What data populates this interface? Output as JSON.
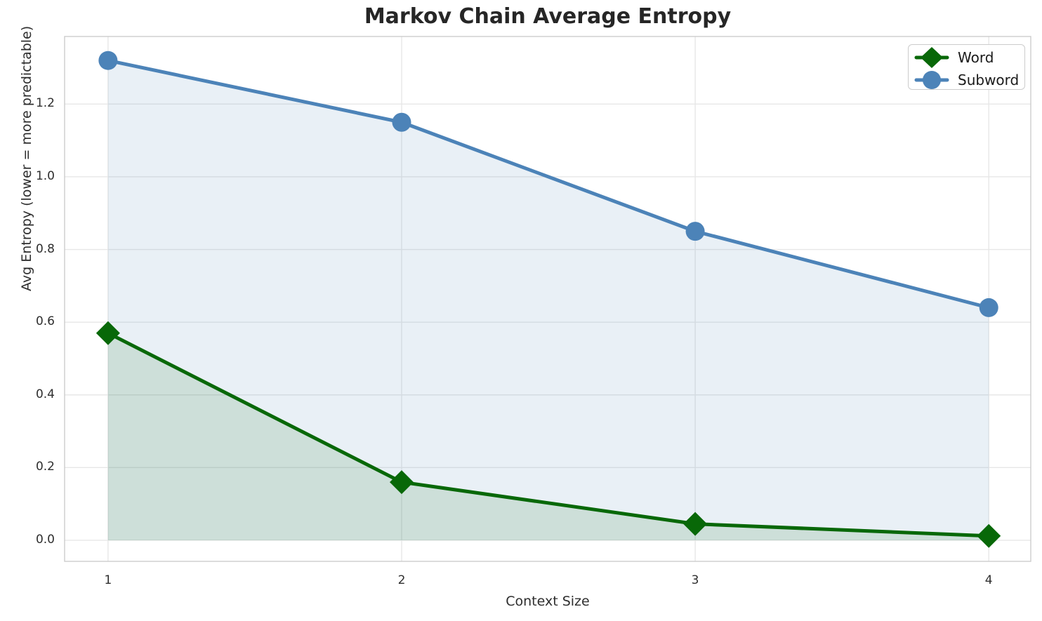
{
  "title": "Markov Chain Average Entropy",
  "chart_data": {
    "type": "line",
    "title": "Markov Chain Average Entropy",
    "xlabel": "Context Size",
    "ylabel": "Avg Entropy (lower = more predictable)",
    "x": [
      1,
      2,
      3,
      4
    ],
    "xticks": [
      "1",
      "2",
      "3",
      "4"
    ],
    "yticks": [
      "0.0",
      "0.2",
      "0.4",
      "0.6",
      "0.8",
      "1.0",
      "1.2"
    ],
    "ytick_values": [
      0.0,
      0.2,
      0.4,
      0.6,
      0.8,
      1.0,
      1.2
    ],
    "xlim": [
      0.852,
      4.143
    ],
    "ylim": [
      -0.058,
      1.386
    ],
    "grid": true,
    "legend_position": "upper right",
    "colors": {
      "grid": "#e7e7e7",
      "spine": "#cccccc",
      "title_text": "#262626",
      "tick_text": "#2e2e2e"
    },
    "series": [
      {
        "name": "Word",
        "marker": "diamond",
        "color": "#086808",
        "fill_color": "rgba(8,104,8,0.12)",
        "values": [
          0.57,
          0.16,
          0.045,
          0.012
        ]
      },
      {
        "name": "Subword",
        "marker": "circle",
        "color": "#4c83b8",
        "fill_color": "rgba(76,131,184,0.12)",
        "values": [
          1.32,
          1.15,
          0.85,
          0.64
        ]
      }
    ]
  }
}
